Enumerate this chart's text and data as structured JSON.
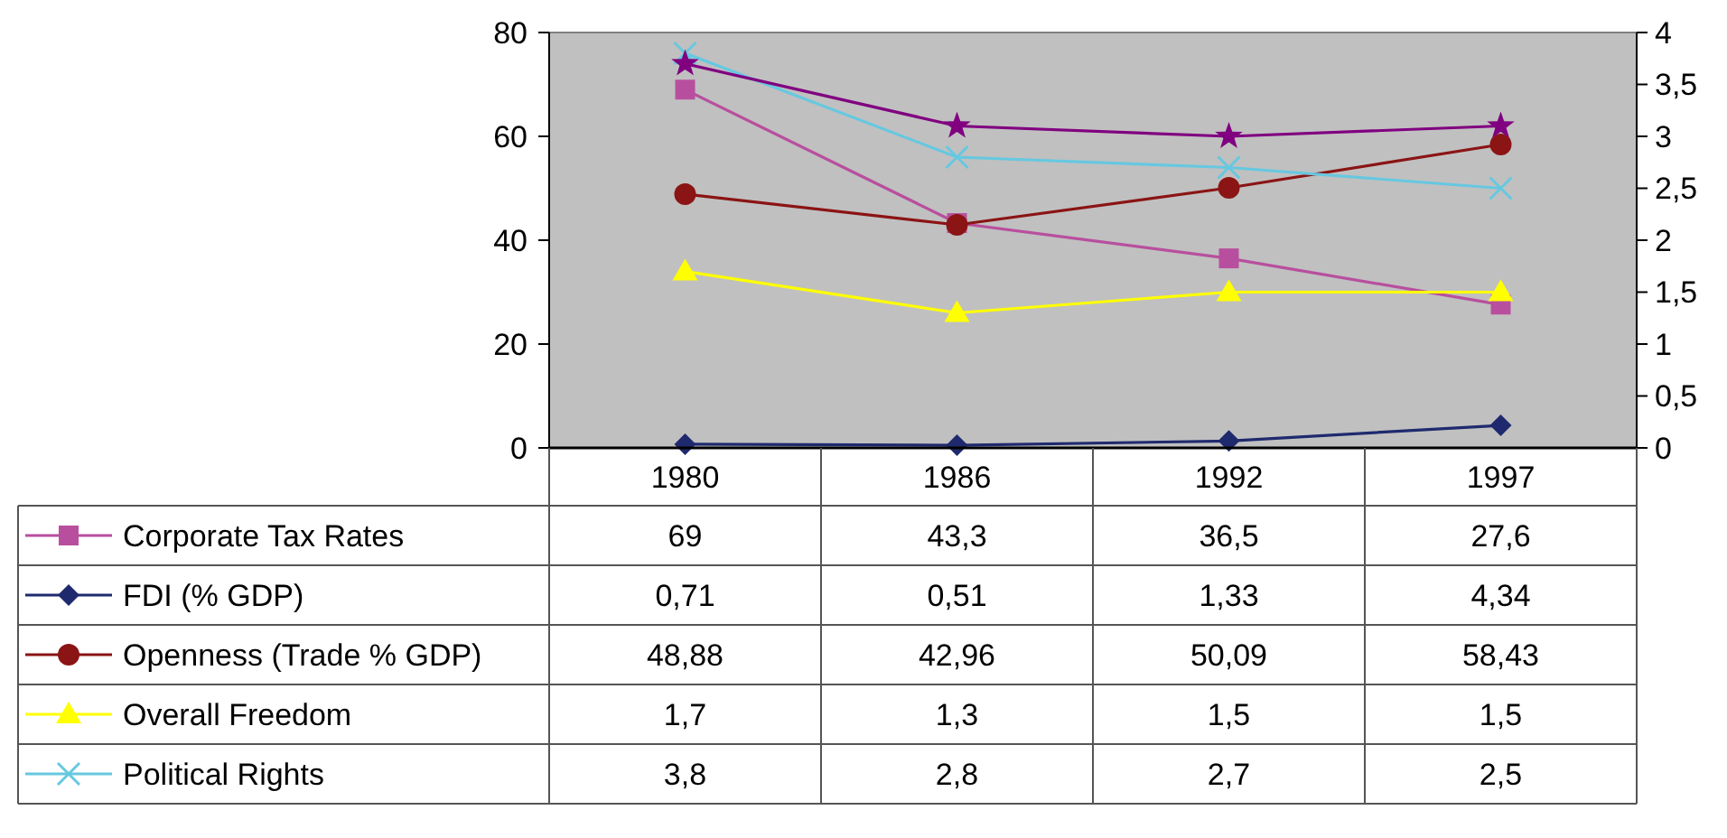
{
  "chart_data": {
    "type": "line",
    "categories": [
      "1980",
      "1986",
      "1992",
      "1997"
    ],
    "ylim": [
      0,
      80
    ],
    "yticks": [
      0,
      20,
      40,
      60,
      80
    ],
    "y2lim": [
      0,
      4
    ],
    "y2ticks": [
      0,
      {
        "value": 0.5,
        "label": "0,5"
      },
      1,
      {
        "value": 1.5,
        "label": "1,5"
      },
      2,
      {
        "value": 2.5,
        "label": "2,5"
      },
      3,
      {
        "value": 3.5,
        "label": "3,5"
      },
      4
    ],
    "legend": "bottom",
    "series": [
      {
        "name": "Corporate Tax Rates",
        "color": "#b84f9e",
        "marker": "square",
        "values": [
          69,
          43.3,
          36.5,
          27.6
        ],
        "value_labels": [
          "69",
          "43,3",
          "36,5",
          "27,6"
        ]
      },
      {
        "name": "FDI (% GDP)",
        "color": "#1f2a6e",
        "marker": "diamond",
        "values": [
          0.71,
          0.51,
          1.33,
          4.34
        ],
        "value_labels": [
          "0,71",
          "0,51",
          "1,33",
          "4,34"
        ]
      },
      {
        "name": "Openness (Trade % GDP)",
        "color": "#8b1414",
        "marker": "circle",
        "values": [
          48.88,
          42.96,
          50.09,
          58.43
        ],
        "value_labels": [
          "48,88",
          "42,96",
          "50,09",
          "58,43"
        ]
      },
      {
        "name": "Overall Freedom",
        "color": "#ffff00",
        "marker": "triangle",
        "axis": "y2",
        "values": [
          1.7,
          1.3,
          1.5,
          1.5
        ],
        "value_labels": [
          "1,7",
          "1,3",
          "1,5",
          "1,5"
        ]
      },
      {
        "name": "Political Rights",
        "color": "#66c8e0",
        "marker": "cross",
        "axis": "y2",
        "values": [
          3.8,
          2.8,
          2.7,
          2.5
        ],
        "value_labels": [
          "3,8",
          "2,8",
          "2,7",
          "2,5"
        ]
      },
      {
        "color": "#800080",
        "marker": "star",
        "axis": "y2",
        "values": [
          3.7,
          3.1,
          3.0,
          3.1
        ]
      }
    ]
  }
}
